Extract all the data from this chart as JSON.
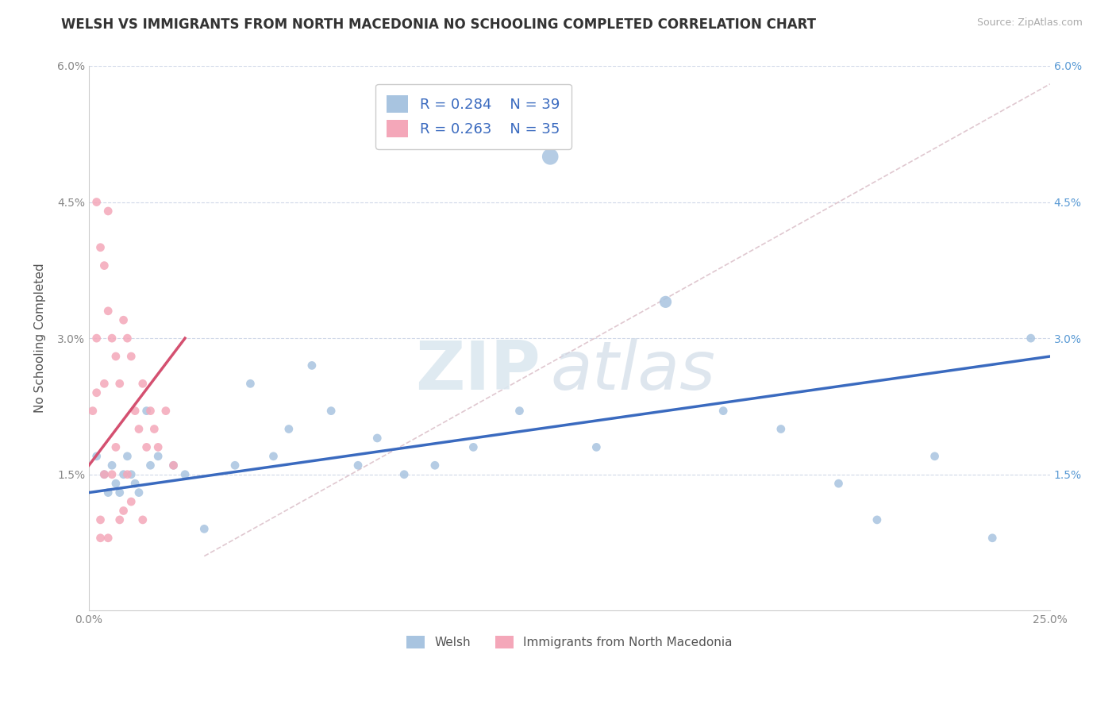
{
  "title": "WELSH VS IMMIGRANTS FROM NORTH MACEDONIA NO SCHOOLING COMPLETED CORRELATION CHART",
  "source": "Source: ZipAtlas.com",
  "ylabel": "No Schooling Completed",
  "xlim": [
    0.0,
    0.25
  ],
  "ylim": [
    0.0,
    0.06
  ],
  "xtick_positions": [
    0.0,
    0.05,
    0.1,
    0.15,
    0.2,
    0.25
  ],
  "xticklabels": [
    "0.0%",
    "",
    "",
    "",
    "",
    "25.0%"
  ],
  "ytick_positions": [
    0.0,
    0.015,
    0.03,
    0.045,
    0.06
  ],
  "yticklabels_left": [
    "",
    "1.5%",
    "3.0%",
    "4.5%",
    "6.0%"
  ],
  "yticklabels_right": [
    "",
    "1.5%",
    "3.0%",
    "4.5%",
    "6.0%"
  ],
  "legend_r_welsh": "R = 0.284",
  "legend_n_welsh": "N = 39",
  "legend_r_mac": "R = 0.263",
  "legend_n_mac": "N = 35",
  "welsh_color": "#a8c4e0",
  "mac_color": "#f4a7b9",
  "welsh_line_color": "#3a6abf",
  "mac_line_color": "#d45070",
  "diag_line_color": "#e0c8d0",
  "grid_color": "#d0d8e8",
  "background_color": "#ffffff",
  "title_fontsize": 12,
  "label_fontsize": 11,
  "tick_fontsize": 10,
  "legend_fontsize": 13,
  "welsh_scatter_x": [
    0.002,
    0.004,
    0.005,
    0.006,
    0.007,
    0.008,
    0.009,
    0.01,
    0.011,
    0.012,
    0.013,
    0.015,
    0.016,
    0.018,
    0.022,
    0.025,
    0.03,
    0.038,
    0.042,
    0.048,
    0.052,
    0.058,
    0.063,
    0.07,
    0.075,
    0.082,
    0.09,
    0.1,
    0.112,
    0.12,
    0.132,
    0.15,
    0.165,
    0.18,
    0.195,
    0.205,
    0.22,
    0.235,
    0.245
  ],
  "welsh_scatter_y": [
    0.017,
    0.015,
    0.013,
    0.016,
    0.014,
    0.013,
    0.015,
    0.017,
    0.015,
    0.014,
    0.013,
    0.022,
    0.016,
    0.017,
    0.016,
    0.015,
    0.009,
    0.016,
    0.025,
    0.017,
    0.02,
    0.027,
    0.022,
    0.016,
    0.019,
    0.015,
    0.016,
    0.018,
    0.022,
    0.05,
    0.018,
    0.034,
    0.022,
    0.02,
    0.014,
    0.01,
    0.017,
    0.008,
    0.03
  ],
  "welsh_sizes": [
    60,
    60,
    60,
    60,
    60,
    60,
    60,
    60,
    60,
    60,
    60,
    60,
    60,
    60,
    60,
    60,
    60,
    60,
    60,
    60,
    60,
    60,
    60,
    60,
    60,
    60,
    60,
    60,
    60,
    220,
    60,
    120,
    60,
    60,
    60,
    60,
    60,
    60,
    60
  ],
  "mac_scatter_x": [
    0.002,
    0.003,
    0.004,
    0.004,
    0.005,
    0.005,
    0.006,
    0.007,
    0.007,
    0.008,
    0.008,
    0.009,
    0.01,
    0.01,
    0.011,
    0.012,
    0.013,
    0.014,
    0.015,
    0.016,
    0.017,
    0.018,
    0.02,
    0.022,
    0.002,
    0.003,
    0.004,
    0.006,
    0.009,
    0.011,
    0.014,
    0.001,
    0.002,
    0.003,
    0.005
  ],
  "mac_scatter_y": [
    0.045,
    0.04,
    0.038,
    0.025,
    0.033,
    0.044,
    0.03,
    0.028,
    0.018,
    0.025,
    0.01,
    0.032,
    0.03,
    0.015,
    0.028,
    0.022,
    0.02,
    0.025,
    0.018,
    0.022,
    0.02,
    0.018,
    0.022,
    0.016,
    0.03,
    0.01,
    0.015,
    0.015,
    0.011,
    0.012,
    0.01,
    0.022,
    0.024,
    0.008,
    0.008
  ],
  "mac_sizes": [
    60,
    60,
    60,
    60,
    60,
    60,
    60,
    60,
    60,
    60,
    60,
    60,
    60,
    60,
    60,
    60,
    60,
    60,
    60,
    60,
    60,
    60,
    60,
    60,
    60,
    60,
    60,
    60,
    60,
    60,
    60,
    60,
    60,
    60,
    60
  ],
  "welsh_line_x": [
    0.0,
    0.25
  ],
  "welsh_line_y": [
    0.013,
    0.028
  ],
  "mac_line_x": [
    0.0,
    0.025
  ],
  "mac_line_y": [
    0.016,
    0.03
  ],
  "diag_line_x": [
    0.03,
    0.25
  ],
  "diag_line_y": [
    0.006,
    0.058
  ]
}
